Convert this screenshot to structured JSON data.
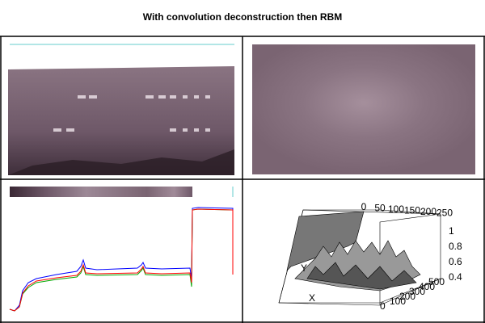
{
  "title": "With convolution deconstruction then RBM",
  "profile": {
    "x": [
      0,
      6,
      12,
      16,
      23,
      33,
      58,
      83,
      88,
      91,
      94,
      108,
      158,
      163,
      165,
      168,
      188,
      223,
      225,
      226,
      233,
      276,
      276
    ],
    "series": [
      {
        "color": "#0000ff",
        "values": [
          7,
          5,
          12,
          30,
          40,
          45,
          50,
          54,
          60,
          68,
          58,
          56,
          58,
          62,
          65,
          58,
          57,
          58,
          45,
          132,
          133,
          132,
          125
        ]
      },
      {
        "color": "#00aa00",
        "values": [
          7,
          5,
          10,
          26,
          34,
          40,
          44,
          47,
          52,
          60,
          50,
          49,
          50,
          55,
          58,
          50,
          49,
          50,
          35,
          130,
          131,
          130,
          128
        ]
      },
      {
        "color": "#ff0000",
        "values": [
          7,
          5,
          10,
          27,
          36,
          42,
          46,
          49,
          54,
          62,
          52,
          51,
          52,
          57,
          60,
          52,
          51,
          52,
          40,
          130,
          131,
          130,
          50
        ]
      }
    ]
  },
  "surface": {
    "top_ticks": [
      0,
      50,
      100,
      150,
      200,
      250
    ],
    "z_ticks": [
      1,
      0.8,
      0.6,
      0.4
    ],
    "bottom_ticks": [
      0,
      100,
      200,
      300,
      400,
      500
    ],
    "y_label": "Y",
    "x_label": "X"
  }
}
